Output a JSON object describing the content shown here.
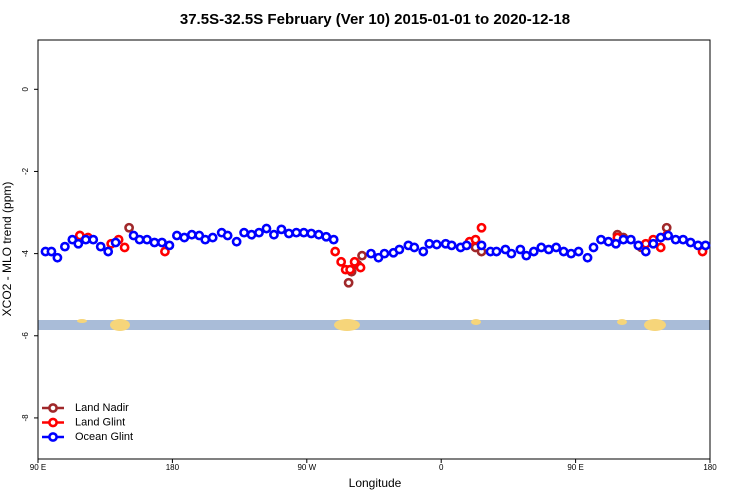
{
  "chart_data": {
    "type": "scatter",
    "title": "37.5S-32.5S February (Ver 10)   2015-01-01 to 2020-12-18",
    "x_label": "Longitude",
    "y_label": "XCO2 - MLO trend (ppm)",
    "xlim": [
      90,
      540
    ],
    "xticks": [
      {
        "value": 90,
        "label": "90 E"
      },
      {
        "value": 180,
        "label": "180"
      },
      {
        "value": 270,
        "label": "90 W"
      },
      {
        "value": 360,
        "label": "0"
      },
      {
        "value": 450,
        "label": "90 E"
      },
      {
        "value": 540,
        "label": "180"
      }
    ],
    "ylim": [
      -9,
      1.2
    ],
    "yticks": [
      -8,
      -6,
      -4,
      -2,
      0
    ],
    "legend": "bottom-left",
    "series": [
      {
        "name": "Land Nadir",
        "color": "#a0282a",
        "x": [
          118,
          151,
          298,
          300,
          304,
          307,
          383,
          387,
          478,
          482,
          494,
          511,
          535
        ],
        "values": [
          -3.56,
          -3.37,
          -4.71,
          -4.44,
          -4.27,
          -4.05,
          -3.85,
          -3.95,
          -3.54,
          -3.61,
          -3.85,
          -3.37,
          -3.9
        ]
      },
      {
        "name": "Land Glint",
        "color": "#ff0000",
        "x": [
          118,
          123.5,
          139,
          144,
          148,
          175,
          289,
          293,
          296,
          299,
          302,
          306,
          379,
          383,
          387,
          478,
          497,
          502,
          507,
          511,
          535
        ],
        "values": [
          -3.56,
          -3.61,
          -3.76,
          -3.66,
          -3.85,
          -3.95,
          -3.95,
          -4.2,
          -4.39,
          -4.39,
          -4.2,
          -4.34,
          -3.71,
          -3.66,
          -3.37,
          -3.61,
          -3.76,
          -3.66,
          -3.85,
          -3.56,
          -3.95
        ]
      },
      {
        "name": "Ocean Glint",
        "color": "#0000ff",
        "x": [
          95,
          99,
          103,
          108,
          113,
          117,
          122,
          127,
          132,
          137,
          142,
          154,
          158,
          163,
          168,
          173,
          178,
          183,
          188,
          193,
          198,
          202,
          207,
          213,
          217,
          223,
          228,
          233,
          238,
          243,
          248,
          253,
          258,
          263,
          268,
          273,
          278,
          283,
          288,
          313,
          318,
          322,
          328,
          332,
          338,
          342,
          348,
          352,
          357,
          363,
          367,
          373,
          377,
          387,
          393,
          397,
          403,
          407,
          413,
          417,
          422,
          427,
          432,
          437,
          442,
          447,
          452,
          458,
          462,
          467,
          472,
          477,
          482,
          487,
          492,
          497,
          502,
          507,
          512,
          517,
          522,
          527,
          532,
          537
        ],
        "values": [
          -3.95,
          -3.95,
          -4.1,
          -3.83,
          -3.66,
          -3.76,
          -3.66,
          -3.66,
          -3.83,
          -3.95,
          -3.73,
          -3.56,
          -3.66,
          -3.66,
          -3.73,
          -3.73,
          -3.8,
          -3.56,
          -3.61,
          -3.54,
          -3.56,
          -3.66,
          -3.61,
          -3.49,
          -3.56,
          -3.71,
          -3.49,
          -3.54,
          -3.49,
          -3.39,
          -3.54,
          -3.41,
          -3.51,
          -3.49,
          -3.49,
          -3.51,
          -3.54,
          -3.59,
          -3.66,
          -4.0,
          -4.1,
          -4.0,
          -3.98,
          -3.9,
          -3.8,
          -3.85,
          -3.95,
          -3.76,
          -3.78,
          -3.76,
          -3.8,
          -3.85,
          -3.8,
          -3.8,
          -3.95,
          -3.95,
          -3.9,
          -4.0,
          -3.9,
          -4.05,
          -3.95,
          -3.85,
          -3.9,
          -3.85,
          -3.95,
          -4.0,
          -3.95,
          -4.1,
          -3.85,
          -3.66,
          -3.71,
          -3.76,
          -3.66,
          -3.66,
          -3.8,
          -3.95,
          -3.76,
          -3.61,
          -3.56,
          -3.66,
          -3.66,
          -3.73,
          -3.8,
          -3.8
        ]
      }
    ]
  }
}
